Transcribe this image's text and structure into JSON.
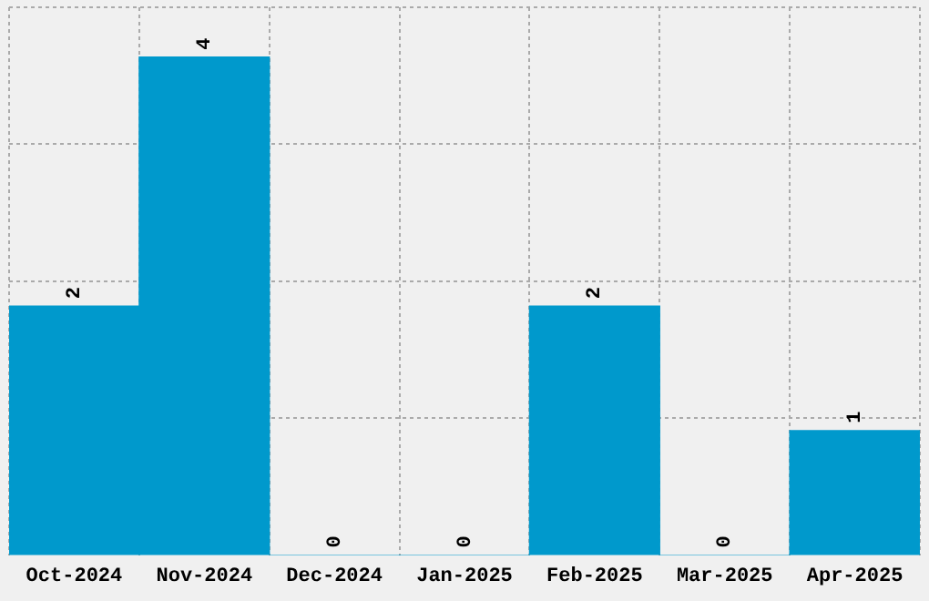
{
  "chart_data": {
    "type": "bar",
    "categories": [
      "Oct-2024",
      "Nov-2024",
      "Dec-2024",
      "Jan-2025",
      "Feb-2025",
      "Mar-2025",
      "Apr-2025"
    ],
    "values": [
      2,
      4,
      0,
      0,
      2,
      0,
      1
    ],
    "color": "#0099cc",
    "ylim": [
      0,
      4.4
    ],
    "yticks": [
      {
        "value": 1.1,
        "label": null
      },
      {
        "value": 2.2,
        "label": null
      },
      {
        "value": 3.3,
        "label": null
      },
      {
        "value": 4.4,
        "label": null
      }
    ],
    "tick_labels": "x",
    "grid": true,
    "data_labels": true,
    "legend": false
  }
}
